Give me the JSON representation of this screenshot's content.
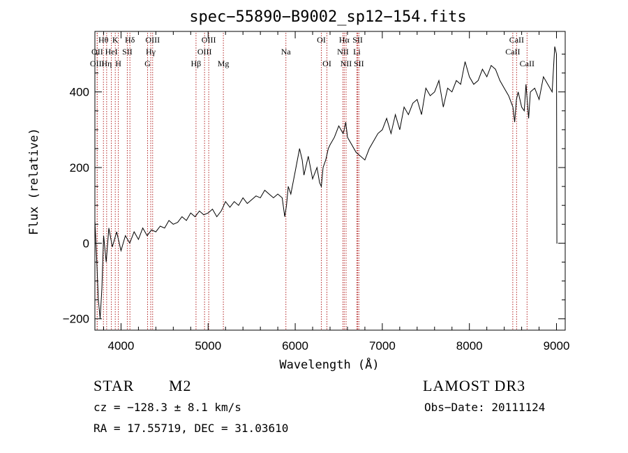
{
  "chart_data": {
    "type": "line",
    "title": "spec−55890−B9002_sp12−154.fits",
    "xlabel": "Wavelength (Å)",
    "ylabel": "Flux (relative)",
    "xlim": [
      3700,
      9100
    ],
    "ylim": [
      -230,
      560
    ],
    "x_ticks": [
      4000,
      5000,
      6000,
      7000,
      8000,
      9000
    ],
    "y_ticks": [
      -200,
      0,
      200,
      400
    ],
    "series": [
      {
        "name": "flux",
        "color": "#000000",
        "x": [
          3700,
          3720,
          3740,
          3760,
          3780,
          3800,
          3830,
          3860,
          3900,
          3950,
          4000,
          4050,
          4100,
          4150,
          4200,
          4250,
          4300,
          4350,
          4400,
          4450,
          4500,
          4550,
          4600,
          4650,
          4700,
          4750,
          4800,
          4850,
          4900,
          4950,
          5000,
          5050,
          5100,
          5150,
          5200,
          5250,
          5300,
          5350,
          5400,
          5450,
          5500,
          5550,
          5600,
          5650,
          5700,
          5750,
          5800,
          5850,
          5880,
          5900,
          5920,
          5950,
          6000,
          6050,
          6080,
          6100,
          6150,
          6200,
          6250,
          6280,
          6300,
          6320,
          6350,
          6380,
          6400,
          6450,
          6500,
          6550,
          6563,
          6580,
          6600,
          6650,
          6700,
          6750,
          6800,
          6850,
          6900,
          6950,
          7000,
          7050,
          7100,
          7150,
          7200,
          7250,
          7300,
          7350,
          7400,
          7450,
          7500,
          7550,
          7600,
          7650,
          7700,
          7750,
          7800,
          7850,
          7900,
          7950,
          8000,
          8050,
          8100,
          8150,
          8200,
          8250,
          8300,
          8350,
          8400,
          8450,
          8500,
          8520,
          8540,
          8560,
          8600,
          8630,
          8650,
          8680,
          8700,
          8750,
          8800,
          8850,
          8900,
          8950,
          8980,
          9000,
          9005,
          9010
        ],
        "values": [
          60,
          -40,
          -150,
          -200,
          -120,
          20,
          -50,
          40,
          -10,
          30,
          -20,
          20,
          0,
          30,
          10,
          40,
          20,
          35,
          30,
          45,
          40,
          60,
          50,
          55,
          70,
          60,
          80,
          70,
          85,
          75,
          80,
          90,
          70,
          85,
          110,
          95,
          110,
          100,
          120,
          105,
          115,
          125,
          120,
          140,
          130,
          120,
          130,
          120,
          70,
          100,
          150,
          130,
          190,
          250,
          220,
          180,
          230,
          170,
          200,
          160,
          150,
          200,
          220,
          250,
          260,
          280,
          310,
          290,
          300,
          320,
          280,
          260,
          240,
          230,
          220,
          250,
          270,
          290,
          300,
          330,
          290,
          340,
          300,
          360,
          340,
          370,
          380,
          340,
          410,
          390,
          400,
          430,
          360,
          410,
          400,
          430,
          420,
          480,
          440,
          420,
          430,
          460,
          440,
          470,
          460,
          430,
          410,
          390,
          360,
          320,
          380,
          400,
          360,
          350,
          420,
          330,
          400,
          410,
          380,
          440,
          420,
          400,
          520,
          500,
          0,
          0
        ]
      }
    ],
    "annotations": {
      "lines": [
        {
          "label": "Hθ",
          "wavelength": 3798,
          "row": 1
        },
        {
          "label": "K",
          "wavelength": 3934,
          "row": 1
        },
        {
          "label": "Hδ",
          "wavelength": 4102,
          "row": 1
        },
        {
          "label": "OIII",
          "wavelength": 4363,
          "row": 1
        },
        {
          "label": "OIII",
          "wavelength": 5007,
          "row": 1
        },
        {
          "label": "OI",
          "wavelength": 6300,
          "row": 1
        },
        {
          "label": "Hα",
          "wavelength": 6563,
          "row": 1
        },
        {
          "label": "SII",
          "wavelength": 6717,
          "row": 1
        },
        {
          "label": "CaII",
          "wavelength": 8542,
          "row": 1
        },
        {
          "label": "OII",
          "wavelength": 3727,
          "row": 2
        },
        {
          "label": "HeI",
          "wavelength": 3889,
          "row": 2
        },
        {
          "label": "SII",
          "wavelength": 4072,
          "row": 2
        },
        {
          "label": "Hγ",
          "wavelength": 4341,
          "row": 2
        },
        {
          "label": "OIII",
          "wavelength": 4959,
          "row": 2
        },
        {
          "label": "Na",
          "wavelength": 5893,
          "row": 2
        },
        {
          "label": "NII",
          "wavelength": 6548,
          "row": 2
        },
        {
          "label": "Li",
          "wavelength": 6708,
          "row": 2
        },
        {
          "label": "CaII",
          "wavelength": 8498,
          "row": 2
        },
        {
          "label": "OIII",
          "wavelength": 3726,
          "row": 3
        },
        {
          "label": "Hη",
          "wavelength": 3835,
          "row": 3
        },
        {
          "label": "H",
          "wavelength": 3969,
          "row": 3
        },
        {
          "label": "G",
          "wavelength": 4305,
          "row": 3
        },
        {
          "label": "Hβ",
          "wavelength": 4861,
          "row": 3
        },
        {
          "label": "Mg",
          "wavelength": 5175,
          "row": 3
        },
        {
          "label": "OI",
          "wavelength": 6364,
          "row": 3
        },
        {
          "label": "NII",
          "wavelength": 6584,
          "row": 3
        },
        {
          "label": "SII",
          "wavelength": 6731,
          "row": 3
        },
        {
          "label": "CaII",
          "wavelength": 8662,
          "row": 3
        }
      ],
      "line_color": "#b22222"
    }
  },
  "info": {
    "object_class": "STAR",
    "subclass": "M2",
    "survey": "LAMOST DR3",
    "cz": "cz = −128.3 ± 8.1 km/s",
    "obs_date": "Obs−Date: 20111124",
    "coords": "RA =  17.55719, DEC =  31.03610"
  }
}
